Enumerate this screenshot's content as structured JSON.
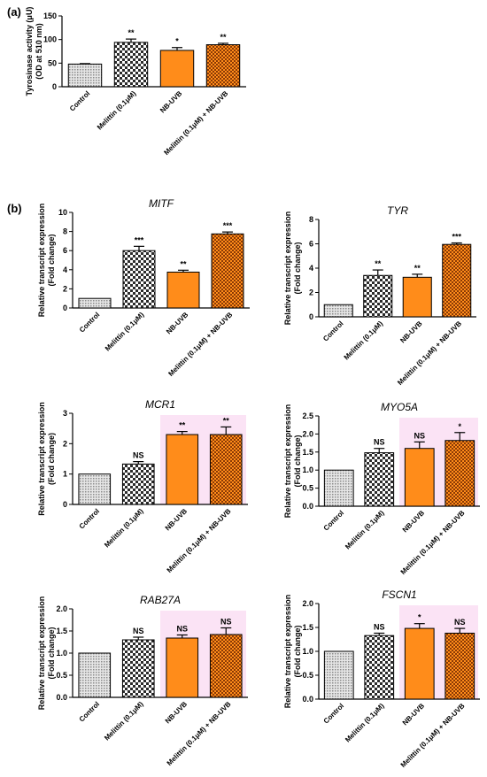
{
  "panel_labels": [
    "(a)",
    "(b)"
  ],
  "colors": {
    "control": "#d9d9d9",
    "melittin": "#ffffff",
    "nbuvb": "#ff8c1a",
    "combo": "#ff8c1a",
    "axis": "#000000",
    "highlight": "#fbe3f5"
  },
  "chart_data": [
    {
      "type": "bar",
      "title": "",
      "ylabel_lines": [
        "Tyrosinase activity (μU)",
        "(OD at 510 nm)"
      ],
      "categories": [
        "Control",
        "Melittin (0.1μM)",
        "NB-UVB",
        "Melittin (0.1μM) + NB-UVB"
      ],
      "values": [
        48,
        94,
        77,
        89
      ],
      "errors": [
        1,
        7,
        6,
        3
      ],
      "significance": [
        "",
        "**",
        "*",
        "**"
      ],
      "ylim": [
        0,
        150
      ],
      "yticks": [
        0,
        50,
        100,
        150
      ]
    },
    {
      "type": "bar",
      "title": "MITF",
      "ylabel_lines": [
        "Relative transcript expression",
        "(Fold change)"
      ],
      "categories": [
        "Control",
        "Melittin (0.1μM)",
        "NB-UVB",
        "Melittin (0.1μM) + NB-UVB"
      ],
      "values": [
        1.0,
        6.0,
        3.75,
        7.75
      ],
      "errors": [
        0,
        0.45,
        0.2,
        0.2
      ],
      "significance": [
        "",
        "***",
        "**",
        "***"
      ],
      "ylim": [
        0,
        10
      ],
      "yticks": [
        0,
        2,
        4,
        6,
        8,
        10
      ]
    },
    {
      "type": "bar",
      "title": "TYR",
      "ylabel_lines": [
        "Relative transcript expression",
        "(Fold change)"
      ],
      "categories": [
        "Control",
        "Melittin (0.1μM)",
        "NB-UVB",
        "Melittin (0.1μM) + NB-UVB"
      ],
      "values": [
        1.0,
        3.4,
        3.25,
        5.95
      ],
      "errors": [
        0,
        0.45,
        0.25,
        0.12
      ],
      "significance": [
        "",
        "**",
        "**",
        "***"
      ],
      "ylim": [
        0,
        8
      ],
      "yticks": [
        0,
        2,
        4,
        6,
        8
      ]
    },
    {
      "type": "bar",
      "title": "MCR1",
      "ylabel_lines": [
        "Relative transcript expression",
        "(Fold change)"
      ],
      "categories": [
        "Control",
        "Melittin (0.1μM)",
        "NB-UVB",
        "Melittin (0.1μM) + NB-UVB"
      ],
      "values": [
        1.0,
        1.33,
        2.3,
        2.3
      ],
      "errors": [
        0,
        0.08,
        0.1,
        0.25
      ],
      "significance": [
        "",
        "NS",
        "**",
        "**"
      ],
      "ylim": [
        0,
        3
      ],
      "yticks": [
        0,
        1,
        2,
        3
      ]
    },
    {
      "type": "bar",
      "title": "MYO5A",
      "ylabel_lines": [
        "Relative transcript expression",
        "(Fold change)"
      ],
      "categories": [
        "Control",
        "Melittin (0.1μM)",
        "NB-UVB",
        "Melittin (0.1μM) + NB-UVB"
      ],
      "values": [
        1.0,
        1.48,
        1.6,
        1.82
      ],
      "errors": [
        0,
        0.12,
        0.18,
        0.22
      ],
      "significance": [
        "",
        "NS",
        "NS",
        "*"
      ],
      "ylim": [
        0,
        2.5
      ],
      "yticks": [
        0.0,
        0.5,
        1.0,
        1.5,
        2.0,
        2.5
      ]
    },
    {
      "type": "bar",
      "title": "RAB27A",
      "ylabel_lines": [
        "Relative transcript expression",
        "(Fold change)"
      ],
      "categories": [
        "Control",
        "Melittin (0.1μM)",
        "NB-UVB",
        "Melittin (0.1μM) + NB-UVB"
      ],
      "values": [
        1.0,
        1.3,
        1.34,
        1.42
      ],
      "errors": [
        0,
        0.06,
        0.07,
        0.15
      ],
      "significance": [
        "",
        "NS",
        "NS",
        "NS"
      ],
      "ylim": [
        0,
        2.0
      ],
      "yticks": [
        0.0,
        0.5,
        1.0,
        1.5,
        2.0
      ]
    },
    {
      "type": "bar",
      "title": "FSCN1",
      "ylabel_lines": [
        "Relative transcript expression",
        "(Fold change)"
      ],
      "categories": [
        "Control",
        "Melittin (0.1μM)",
        "NB-UVB",
        "Melittin (0.1μM) + NB-UVB"
      ],
      "values": [
        1.0,
        1.33,
        1.48,
        1.38
      ],
      "errors": [
        0,
        0.05,
        0.1,
        0.1
      ],
      "significance": [
        "",
        "NS",
        "*",
        "NS"
      ],
      "ylim": [
        0,
        2.0
      ],
      "yticks": [
        0.0,
        0.5,
        1.0,
        1.5,
        2.0
      ]
    }
  ]
}
